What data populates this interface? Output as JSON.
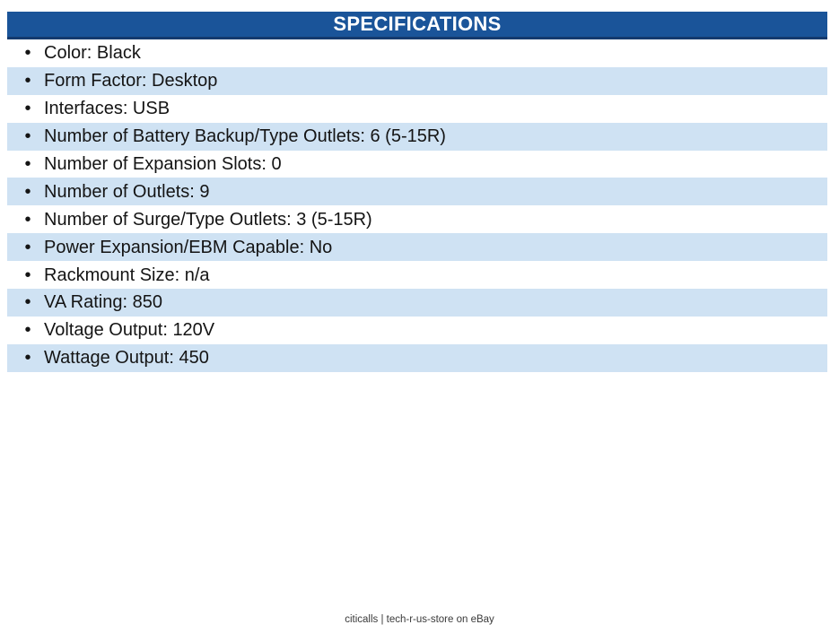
{
  "table": {
    "header": "SPECIFICATIONS",
    "bullet": "•",
    "rows": [
      {
        "label": "Color",
        "value": "Black",
        "text": "Color: Black"
      },
      {
        "label": "Form Factor",
        "value": "Desktop",
        "text": "Form Factor: Desktop"
      },
      {
        "label": "Interfaces",
        "value": "USB",
        "text": "Interfaces: USB"
      },
      {
        "label": "Number of Battery Backup/Type Outlets",
        "value": "6 (5-15R)",
        "text": "Number of Battery Backup/Type Outlets: 6 (5-15R)"
      },
      {
        "label": "Number of Expansion Slots",
        "value": "0",
        "text": "Number of Expansion Slots: 0"
      },
      {
        "label": "Number of Outlets",
        "value": "9",
        "text": "Number of Outlets: 9"
      },
      {
        "label": "Number of Surge/Type Outlets",
        "value": "3 (5-15R)",
        "text": "Number of Surge/Type Outlets: 3 (5-15R)"
      },
      {
        "label": "Power Expansion/EBM Capable",
        "value": "No",
        "text": "Power Expansion/EBM Capable: No"
      },
      {
        "label": "Rackmount Size",
        "value": "n/a",
        "text": "Rackmount Size: n/a"
      },
      {
        "label": "VA Rating",
        "value": "850",
        "text": "VA Rating: 850"
      },
      {
        "label": "Voltage Output",
        "value": "120V",
        "text": "Voltage Output: 120V"
      },
      {
        "label": "Wattage Output",
        "value": "450",
        "text": "Wattage Output: 450"
      }
    ]
  },
  "footer": {
    "text": "citicalls | tech-r-us-store on eBay"
  },
  "colors": {
    "header_bg": "#1A5499",
    "header_border": "#143A6E",
    "header_text": "#FFFFFF",
    "row_alt_bg": "#CFE2F3",
    "row_bg": "#FFFFFF",
    "text": "#141414",
    "footer_text": "#3A3A3A",
    "page_bg": "#FFFFFF"
  }
}
